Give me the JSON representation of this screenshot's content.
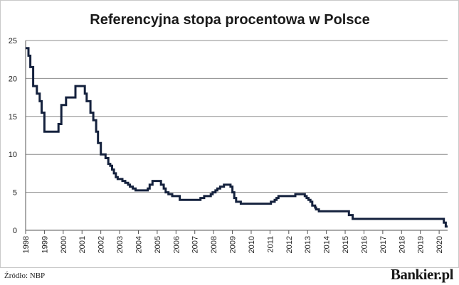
{
  "chart_data": {
    "type": "line",
    "title": "Referencyjna stopa procentowa w Polsce",
    "xlabel": "",
    "ylabel": "",
    "xlim": [
      1998.0,
      2020.45
    ],
    "ylim": [
      0,
      25
    ],
    "yticks": [
      0,
      5,
      10,
      15,
      20,
      25
    ],
    "xticks": [
      "1998",
      "1999",
      "2000",
      "2001",
      "2002",
      "2003",
      "2004",
      "2005",
      "2006",
      "2007",
      "2008",
      "2009",
      "2010",
      "2011",
      "2012",
      "2013",
      "2014",
      "2015",
      "2016",
      "2017",
      "2018",
      "2019",
      "2020"
    ],
    "grid": "horizontal",
    "legend": "none",
    "step": true,
    "series": [
      {
        "color": "#14213d",
        "points": [
          [
            1998.0,
            24.0
          ],
          [
            1998.15,
            23.0
          ],
          [
            1998.25,
            21.5
          ],
          [
            1998.4,
            19.0
          ],
          [
            1998.6,
            18.0
          ],
          [
            1998.75,
            17.0
          ],
          [
            1998.85,
            15.5
          ],
          [
            1999.0,
            13.0
          ],
          [
            1999.75,
            14.0
          ],
          [
            1999.9,
            16.5
          ],
          [
            2000.15,
            17.5
          ],
          [
            2000.65,
            19.0
          ],
          [
            2001.15,
            18.0
          ],
          [
            2001.25,
            17.0
          ],
          [
            2001.45,
            15.5
          ],
          [
            2001.6,
            14.5
          ],
          [
            2001.75,
            13.0
          ],
          [
            2001.85,
            11.5
          ],
          [
            2002.0,
            10.0
          ],
          [
            2002.25,
            9.5
          ],
          [
            2002.4,
            8.75
          ],
          [
            2002.5,
            8.5
          ],
          [
            2002.6,
            8.0
          ],
          [
            2002.7,
            7.5
          ],
          [
            2002.8,
            7.0
          ],
          [
            2002.9,
            6.75
          ],
          [
            2003.15,
            6.5
          ],
          [
            2003.3,
            6.25
          ],
          [
            2003.45,
            6.0
          ],
          [
            2003.55,
            5.75
          ],
          [
            2003.7,
            5.5
          ],
          [
            2003.85,
            5.25
          ],
          [
            2004.5,
            5.5
          ],
          [
            2004.6,
            6.0
          ],
          [
            2004.75,
            6.5
          ],
          [
            2005.2,
            6.0
          ],
          [
            2005.35,
            5.5
          ],
          [
            2005.45,
            5.0
          ],
          [
            2005.6,
            4.75
          ],
          [
            2005.8,
            4.5
          ],
          [
            2006.2,
            4.0
          ],
          [
            2007.3,
            4.25
          ],
          [
            2007.5,
            4.5
          ],
          [
            2007.85,
            4.75
          ],
          [
            2007.95,
            5.0
          ],
          [
            2008.1,
            5.25
          ],
          [
            2008.2,
            5.5
          ],
          [
            2008.35,
            5.75
          ],
          [
            2008.55,
            6.0
          ],
          [
            2008.9,
            5.75
          ],
          [
            2009.0,
            5.0
          ],
          [
            2009.1,
            4.25
          ],
          [
            2009.2,
            3.75
          ],
          [
            2009.45,
            3.5
          ],
          [
            2011.05,
            3.75
          ],
          [
            2011.25,
            4.0
          ],
          [
            2011.35,
            4.25
          ],
          [
            2011.45,
            4.5
          ],
          [
            2012.35,
            4.75
          ],
          [
            2012.85,
            4.5
          ],
          [
            2012.95,
            4.25
          ],
          [
            2013.05,
            4.0
          ],
          [
            2013.15,
            3.75
          ],
          [
            2013.25,
            3.25
          ],
          [
            2013.4,
            3.0
          ],
          [
            2013.45,
            2.75
          ],
          [
            2013.6,
            2.5
          ],
          [
            2015.2,
            2.0
          ],
          [
            2015.4,
            1.5
          ],
          [
            2020.25,
            1.0
          ],
          [
            2020.35,
            0.5
          ],
          [
            2020.45,
            0.5
          ]
        ]
      }
    ]
  },
  "footer": {
    "source": "Źródło: NBP",
    "brand": "Bankier.pl"
  }
}
